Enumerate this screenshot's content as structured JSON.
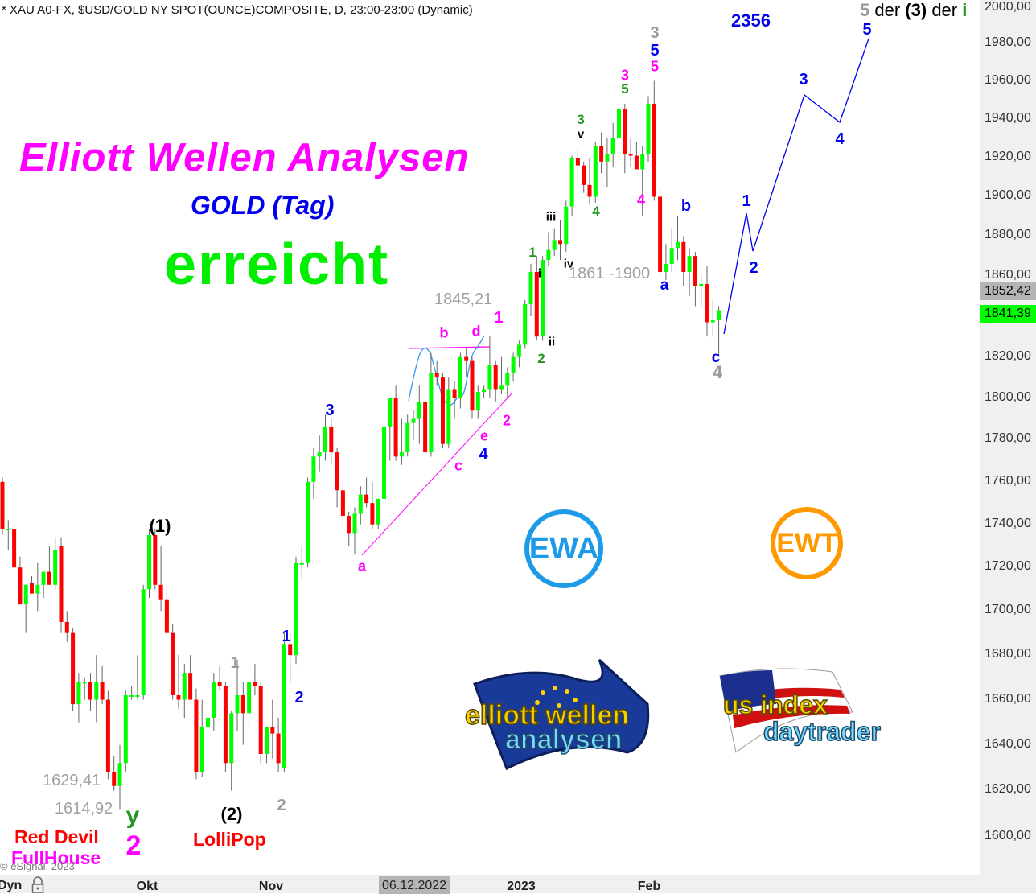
{
  "header": {
    "instrument": "* XAU A0-FX, $USD/GOLD NY SPOT(OUNCE)COMPOSITE, D, 23:00-23:00 (Dynamic)",
    "top_count": "2356",
    "wave_note": {
      "w1": "5",
      "d1": "der",
      "w2": "(3)",
      "d2": "der",
      "w3": "i"
    }
  },
  "overlay": {
    "title": "Elliott Wellen Analysen",
    "subtitle": "GOLD (Tag)",
    "status": "erreicht",
    "red_devil": "Red Devil",
    "fullhouse": "FullHouse",
    "lollipop": "LolliPop",
    "copyright": "© eSignal, 2023",
    "price_notes": [
      "1629,41",
      "1614,92",
      "1845,21",
      "1861 -1900"
    ],
    "logos": {
      "ewa_badge": "EWA",
      "ewt_badge": "EWT",
      "ewa_logo": "elliott wellen analysen",
      "ewt_logo": "us index daytrader"
    }
  },
  "xaxis": {
    "mode": "Dyn",
    "labels": [
      "Okt",
      "Nov",
      "06.12.2022",
      "2023",
      "Feb"
    ]
  },
  "colors": {
    "up": "#00ff00",
    "down": "#ff0000",
    "wick": "#666666",
    "magenta": "#ff00ff",
    "blue": "#0000ee",
    "wave_green": "#1f961f",
    "gray": "#9a9a9a",
    "ewa": "#1e9be8",
    "ewt": "#ff9900"
  },
  "chart_data": {
    "type": "candlestick",
    "scale": "log",
    "ylim": [
      1600,
      2000
    ],
    "yticks": [
      "2000,00",
      "1980,00",
      "1960,00",
      "1940,00",
      "1920,00",
      "1900,00",
      "1880,00",
      "1860,00",
      "1840,00",
      "1820,00",
      "1800,00",
      "1780,00",
      "1760,00",
      "1740,00",
      "1720,00",
      "1700,00",
      "1680,00",
      "1660,00",
      "1640,00",
      "1620,00",
      "1600,00"
    ],
    "ytick_values": [
      2000,
      1980,
      1960,
      1940,
      1920,
      1900,
      1880,
      1860,
      1840,
      1820,
      1800,
      1780,
      1760,
      1740,
      1720,
      1700,
      1680,
      1660,
      1640,
      1620,
      1600
    ],
    "price_tags": [
      {
        "label": "1852,42",
        "value": 1852.42,
        "color": "#b4b4b4"
      },
      {
        "label": "1841,39",
        "value": 1841.39,
        "color": "#00ff00"
      }
    ],
    "candles_ohlc": [
      [
        1760,
        1762,
        1735,
        1738
      ],
      [
        1738,
        1742,
        1728,
        1738
      ],
      [
        1738,
        1740,
        1720,
        1720
      ],
      [
        1720,
        1725,
        1703,
        1703
      ],
      [
        1703,
        1712,
        1690,
        1712
      ],
      [
        1713,
        1716,
        1708,
        1708
      ],
      [
        1708,
        1722,
        1700,
        1712
      ],
      [
        1712,
        1718,
        1706,
        1718
      ],
      [
        1718,
        1730,
        1712,
        1712
      ],
      [
        1712,
        1734,
        1710,
        1728
      ],
      [
        1730,
        1734,
        1690,
        1695
      ],
      [
        1695,
        1700,
        1686,
        1690
      ],
      [
        1690,
        1692,
        1655,
        1658
      ],
      [
        1658,
        1672,
        1650,
        1668
      ],
      [
        1668,
        1670,
        1660,
        1668
      ],
      [
        1668,
        1672,
        1655,
        1660
      ],
      [
        1660,
        1680,
        1650,
        1668
      ],
      [
        1668,
        1675,
        1658,
        1660
      ],
      [
        1660,
        1664,
        1625,
        1628
      ],
      [
        1628,
        1635,
        1620,
        1622
      ],
      [
        1622,
        1640,
        1612,
        1632
      ],
      [
        1632,
        1664,
        1628,
        1662
      ],
      [
        1662,
        1666,
        1660,
        1662
      ],
      [
        1662,
        1680,
        1660,
        1662
      ],
      [
        1662,
        1712,
        1660,
        1710
      ],
      [
        1710,
        1738,
        1706,
        1735
      ],
      [
        1735,
        1738,
        1710,
        1712
      ],
      [
        1712,
        1730,
        1700,
        1705
      ],
      [
        1705,
        1712,
        1690,
        1690
      ],
      [
        1690,
        1694,
        1660,
        1662
      ],
      [
        1662,
        1680,
        1656,
        1660
      ],
      [
        1660,
        1676,
        1652,
        1672
      ],
      [
        1672,
        1680,
        1660,
        1660
      ],
      [
        1660,
        1665,
        1625,
        1628
      ],
      [
        1628,
        1660,
        1626,
        1648
      ],
      [
        1648,
        1658,
        1640,
        1652
      ],
      [
        1652,
        1672,
        1646,
        1668
      ],
      [
        1668,
        1675,
        1664,
        1666
      ],
      [
        1666,
        1668,
        1628,
        1632
      ],
      [
        1632,
        1655,
        1620,
        1654
      ],
      [
        1654,
        1678,
        1646,
        1662
      ],
      [
        1662,
        1668,
        1640,
        1654
      ],
      [
        1654,
        1670,
        1648,
        1668
      ],
      [
        1668,
        1676,
        1662,
        1666
      ],
      [
        1666,
        1668,
        1632,
        1636
      ],
      [
        1636,
        1648,
        1632,
        1648
      ],
      [
        1648,
        1660,
        1634,
        1645
      ],
      [
        1645,
        1652,
        1628,
        1632
      ],
      [
        1630,
        1690,
        1628,
        1685
      ],
      [
        1685,
        1690,
        1668,
        1680
      ],
      [
        1680,
        1725,
        1676,
        1722
      ],
      [
        1722,
        1730,
        1715,
        1722
      ],
      [
        1722,
        1762,
        1720,
        1760
      ],
      [
        1760,
        1776,
        1752,
        1772
      ],
      [
        1772,
        1782,
        1765,
        1774
      ],
      [
        1774,
        1792,
        1770,
        1786
      ],
      [
        1786,
        1790,
        1768,
        1774
      ],
      [
        1774,
        1776,
        1748,
        1756
      ],
      [
        1756,
        1760,
        1738,
        1744
      ],
      [
        1744,
        1746,
        1730,
        1736
      ],
      [
        1736,
        1748,
        1726,
        1745
      ],
      [
        1745,
        1758,
        1740,
        1754
      ],
      [
        1754,
        1762,
        1748,
        1750
      ],
      [
        1750,
        1760,
        1738,
        1740
      ],
      [
        1740,
        1752,
        1738,
        1752
      ],
      [
        1752,
        1790,
        1748,
        1786
      ],
      [
        1786,
        1800,
        1770,
        1800
      ],
      [
        1800,
        1806,
        1770,
        1772
      ],
      [
        1772,
        1790,
        1768,
        1774
      ],
      [
        1774,
        1792,
        1772,
        1788
      ],
      [
        1788,
        1794,
        1780,
        1790
      ],
      [
        1790,
        1806,
        1778,
        1798
      ],
      [
        1798,
        1800,
        1772,
        1774
      ],
      [
        1774,
        1822,
        1772,
        1812
      ],
      [
        1812,
        1818,
        1806,
        1810
      ],
      [
        1810,
        1812,
        1776,
        1778
      ],
      [
        1778,
        1810,
        1776,
        1804
      ],
      [
        1804,
        1808,
        1790,
        1800
      ],
      [
        1800,
        1822,
        1795,
        1820
      ],
      [
        1820,
        1825,
        1810,
        1818
      ],
      [
        1818,
        1820,
        1790,
        1794
      ],
      [
        1794,
        1806,
        1790,
        1803
      ],
      [
        1803,
        1806,
        1800,
        1804
      ],
      [
        1804,
        1830,
        1800,
        1816
      ],
      [
        1816,
        1818,
        1798,
        1804
      ],
      [
        1804,
        1820,
        1802,
        1806
      ],
      [
        1806,
        1815,
        1800,
        1812
      ],
      [
        1812,
        1822,
        1808,
        1820
      ],
      [
        1820,
        1828,
        1815,
        1826
      ],
      [
        1826,
        1848,
        1824,
        1846
      ],
      [
        1846,
        1866,
        1840,
        1862
      ],
      [
        1862,
        1870,
        1828,
        1830
      ],
      [
        1830,
        1870,
        1828,
        1868
      ],
      [
        1868,
        1882,
        1865,
        1873
      ],
      [
        1873,
        1884,
        1870,
        1878
      ],
      [
        1878,
        1888,
        1868,
        1876
      ],
      [
        1876,
        1898,
        1872,
        1895
      ],
      [
        1895,
        1921,
        1890,
        1920
      ],
      [
        1920,
        1925,
        1908,
        1916
      ],
      [
        1916,
        1918,
        1902,
        1906
      ],
      [
        1906,
        1920,
        1896,
        1900
      ],
      [
        1900,
        1928,
        1897,
        1926
      ],
      [
        1926,
        1933,
        1912,
        1918
      ],
      [
        1918,
        1930,
        1905,
        1922
      ],
      [
        1922,
        1938,
        1915,
        1930
      ],
      [
        1930,
        1948,
        1920,
        1945
      ],
      [
        1945,
        1948,
        1912,
        1922
      ],
      [
        1922,
        1930,
        1915,
        1921
      ],
      [
        1921,
        1928,
        1914,
        1914
      ],
      [
        1914,
        1926,
        1890,
        1922
      ],
      [
        1922,
        1952,
        1918,
        1948
      ],
      [
        1948,
        1960,
        1898,
        1900
      ],
      [
        1900,
        1905,
        1860,
        1862
      ],
      [
        1862,
        1876,
        1858,
        1866
      ],
      [
        1866,
        1884,
        1862,
        1874
      ],
      [
        1874,
        1890,
        1868,
        1877
      ],
      [
        1877,
        1880,
        1855,
        1862
      ],
      [
        1862,
        1874,
        1850,
        1870
      ],
      [
        1870,
        1872,
        1845,
        1855
      ],
      [
        1855,
        1860,
        1845,
        1856
      ],
      [
        1856,
        1865,
        1830,
        1837
      ],
      [
        1837,
        1848,
        1830,
        1838
      ],
      [
        1838,
        1845,
        1820,
        1843
      ]
    ],
    "annotations": [
      {
        "text": "(1)",
        "color": "#000000"
      },
      {
        "text": "(2)",
        "color": "#000000"
      },
      {
        "text": "1",
        "color": "#9a9a9a"
      },
      {
        "text": "2",
        "color": "#9a9a9a"
      },
      {
        "text": "y",
        "color": "#1f961f"
      },
      {
        "text": "2",
        "color": "#ff00ff"
      },
      {
        "text": "1",
        "color": "#0000ee"
      },
      {
        "text": "2",
        "color": "#0000ee"
      },
      {
        "text": "3",
        "color": "#0000ee"
      },
      {
        "text": "a",
        "color": "#ff00ff"
      },
      {
        "text": "b",
        "color": "#ff00ff"
      },
      {
        "text": "d",
        "color": "#ff00ff"
      },
      {
        "text": "c",
        "color": "#ff00ff"
      },
      {
        "text": "e",
        "color": "#ff00ff"
      },
      {
        "text": "4",
        "color": "#0000ee"
      },
      {
        "text": "2",
        "color": "#ff00ff"
      },
      {
        "text": "1",
        "color": "#ff00ff"
      },
      {
        "text": "2",
        "color": "#1f961f"
      },
      {
        "text": "ii",
        "color": "#000000"
      },
      {
        "text": "i",
        "color": "#000000"
      },
      {
        "text": "1",
        "color": "#1f961f"
      },
      {
        "text": "iv",
        "color": "#000000"
      },
      {
        "text": "iii",
        "color": "#000000"
      },
      {
        "text": "3",
        "color": "#1f961f"
      },
      {
        "text": "v",
        "color": "#000000"
      },
      {
        "text": "4",
        "color": "#1f961f"
      },
      {
        "text": "3",
        "color": "#ff00ff"
      },
      {
        "text": "5",
        "color": "#1f961f"
      },
      {
        "text": "4",
        "color": "#ff00ff"
      },
      {
        "text": "3",
        "color": "#9a9a9a"
      },
      {
        "text": "5",
        "color": "#0000ee"
      },
      {
        "text": "5",
        "color": "#ff00ff"
      },
      {
        "text": "a",
        "color": "#0000ee"
      },
      {
        "text": "b",
        "color": "#0000ee"
      },
      {
        "text": "c",
        "color": "#0000ee"
      },
      {
        "text": "4",
        "color": "#9a9a9a"
      },
      {
        "text": "1",
        "color": "#0000ee"
      },
      {
        "text": "2",
        "color": "#0000ee"
      },
      {
        "text": "3",
        "color": "#0000ee"
      },
      {
        "text": "4",
        "color": "#0000ee"
      },
      {
        "text": "5",
        "color": "#0000ee"
      }
    ]
  }
}
